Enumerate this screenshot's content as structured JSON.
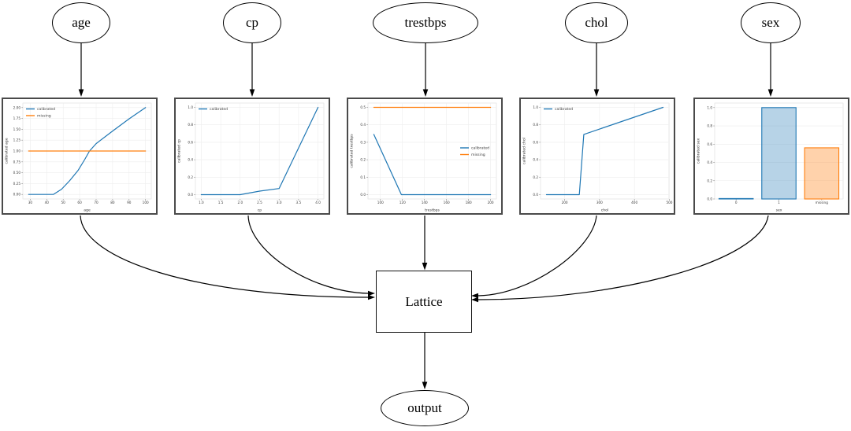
{
  "diagram": {
    "inputs": [
      {
        "id": "age",
        "label": "age"
      },
      {
        "id": "cp",
        "label": "cp"
      },
      {
        "id": "trestbps",
        "label": "trestbps"
      },
      {
        "id": "chol",
        "label": "chol"
      },
      {
        "id": "sex",
        "label": "sex"
      }
    ],
    "lattice": {
      "label": "Lattice"
    },
    "output": {
      "label": "output"
    }
  },
  "colors": {
    "calibrated": "#1f77b4",
    "missing": "#ff7f0e",
    "edge": "#000000",
    "plot_border": "#4a4a4a"
  },
  "chart_data": [
    {
      "id": "age",
      "type": "line",
      "title": "",
      "xlabel": "age",
      "ylabel": "calibrated age",
      "xlim": [
        25.5,
        103.5
      ],
      "ylim": [
        -0.105,
        2.105
      ],
      "grid": true,
      "xticks": [
        [
          30,
          "30"
        ],
        [
          40,
          "40"
        ],
        [
          50,
          "50"
        ],
        [
          60,
          "60"
        ],
        [
          70,
          "70"
        ],
        [
          80,
          "80"
        ],
        [
          90,
          "90"
        ],
        [
          100,
          "100"
        ]
      ],
      "yticks": [
        [
          0,
          "0.00"
        ],
        [
          0.25,
          "0.25"
        ],
        [
          0.5,
          "0.50"
        ],
        [
          0.75,
          "0.75"
        ],
        [
          1,
          "1.00"
        ],
        [
          1.25,
          "1.25"
        ],
        [
          1.5,
          "1.50"
        ],
        [
          1.75,
          "1.75"
        ],
        [
          2,
          "2.00"
        ]
      ],
      "series": [
        {
          "name": "calibrated",
          "color": "#1f77b4",
          "points": [
            [
              29,
              0
            ],
            [
              44,
              0
            ],
            [
              49,
              0.12
            ],
            [
              54,
              0.32
            ],
            [
              59,
              0.55
            ],
            [
              63,
              0.8
            ],
            [
              66,
              1.0
            ],
            [
              70,
              1.17
            ],
            [
              80,
              1.46
            ],
            [
              90,
              1.74
            ],
            [
              100,
              2.0
            ]
          ]
        },
        {
          "name": "missing",
          "color": "#ff7f0e",
          "points": [
            [
              29,
              1.0
            ],
            [
              100,
              1.0
            ]
          ]
        }
      ],
      "legend": {
        "pos": "nw",
        "entries": [
          {
            "label": "calibrated",
            "color": "#1f77b4"
          },
          {
            "label": "missing",
            "color": "#ff7f0e"
          }
        ]
      }
    },
    {
      "id": "cp",
      "type": "line",
      "title": "",
      "xlabel": "cp",
      "ylabel": "calibrated cp",
      "xlim": [
        0.85,
        4.15
      ],
      "ylim": [
        -0.05,
        1.05
      ],
      "grid": true,
      "xticks": [
        [
          1,
          "1.0"
        ],
        [
          1.5,
          "1.5"
        ],
        [
          2,
          "2.0"
        ],
        [
          2.5,
          "2.5"
        ],
        [
          3,
          "3.0"
        ],
        [
          3.5,
          "3.5"
        ],
        [
          4,
          "4.0"
        ]
      ],
      "yticks": [
        [
          0,
          "0.0"
        ],
        [
          0.2,
          "0.2"
        ],
        [
          0.4,
          "0.4"
        ],
        [
          0.6,
          "0.6"
        ],
        [
          0.8,
          "0.8"
        ],
        [
          1,
          "1.0"
        ]
      ],
      "series": [
        {
          "name": "calibrated",
          "color": "#1f77b4",
          "points": [
            [
              1,
              0
            ],
            [
              2,
              0
            ],
            [
              2.5,
              0.04
            ],
            [
              3,
              0.07
            ],
            [
              4,
              1.0
            ]
          ]
        }
      ],
      "legend": {
        "pos": "nw",
        "entries": [
          {
            "label": "calibrated",
            "color": "#1f77b4"
          }
        ]
      }
    },
    {
      "id": "trestbps",
      "type": "line",
      "title": "",
      "xlabel": "trestbps",
      "ylabel": "calibrated trestbps",
      "xlim": [
        88.7,
        205.3
      ],
      "ylim": [
        -0.025,
        0.525
      ],
      "grid": true,
      "xticks": [
        [
          100,
          "100"
        ],
        [
          120,
          "120"
        ],
        [
          140,
          "140"
        ],
        [
          160,
          "160"
        ],
        [
          180,
          "180"
        ],
        [
          200,
          "200"
        ]
      ],
      "yticks": [
        [
          0,
          "0.0"
        ],
        [
          0.1,
          "0.1"
        ],
        [
          0.2,
          "0.2"
        ],
        [
          0.3,
          "0.3"
        ],
        [
          0.4,
          "0.4"
        ],
        [
          0.5,
          "0.5"
        ]
      ],
      "series": [
        {
          "name": "calibrated",
          "color": "#1f77b4",
          "points": [
            [
              94,
              0.345
            ],
            [
              119,
              0
            ],
            [
              200,
              0
            ]
          ]
        },
        {
          "name": "missing",
          "color": "#ff7f0e",
          "points": [
            [
              94,
              0.5
            ],
            [
              200,
              0.5
            ]
          ]
        }
      ],
      "legend": {
        "pos": "e",
        "entries": [
          {
            "label": "calibrated",
            "color": "#1f77b4"
          },
          {
            "label": "missing",
            "color": "#ff7f0e"
          }
        ]
      }
    },
    {
      "id": "chol",
      "type": "line",
      "title": "",
      "xlabel": "chol",
      "ylabel": "calibrated chol",
      "xlim": [
        131,
        499
      ],
      "ylim": [
        -0.05,
        1.05
      ],
      "grid": true,
      "xticks": [
        [
          200,
          "200"
        ],
        [
          300,
          "300"
        ],
        [
          400,
          "400"
        ],
        [
          500,
          "500"
        ]
      ],
      "yticks": [
        [
          0,
          "0.0"
        ],
        [
          0.2,
          "0.2"
        ],
        [
          0.4,
          "0.4"
        ],
        [
          0.6,
          "0.6"
        ],
        [
          0.8,
          "0.8"
        ],
        [
          1,
          "1.0"
        ]
      ],
      "series": [
        {
          "name": "calibrated",
          "color": "#1f77b4",
          "points": [
            [
              148,
              0
            ],
            [
              242,
              0
            ],
            [
              255,
              0.69
            ],
            [
              482,
              1.0
            ]
          ]
        }
      ],
      "legend": {
        "pos": "nw",
        "entries": [
          {
            "label": "calibrated",
            "color": "#1f77b4"
          }
        ]
      }
    },
    {
      "id": "sex",
      "type": "bar",
      "title": "",
      "xlabel": "sex",
      "ylabel": "calibrated sex",
      "ylim": [
        0,
        1.05
      ],
      "grid": true,
      "categories": [
        "0",
        "1",
        "missing"
      ],
      "values": [
        0.005,
        1.0,
        0.56
      ],
      "bar_fills": [
        "rgba(31,119,180,0.32)",
        "rgba(31,119,180,0.32)",
        "rgba(255,127,14,0.35)"
      ],
      "bar_strokes": [
        "#1f77b4",
        "#1f77b4",
        "#ff7f0e"
      ],
      "yticks": [
        [
          0,
          "0.0"
        ],
        [
          0.2,
          "0.2"
        ],
        [
          0.4,
          "0.4"
        ],
        [
          0.6,
          "0.6"
        ],
        [
          0.8,
          "0.8"
        ],
        [
          1,
          "1.0"
        ]
      ]
    }
  ]
}
